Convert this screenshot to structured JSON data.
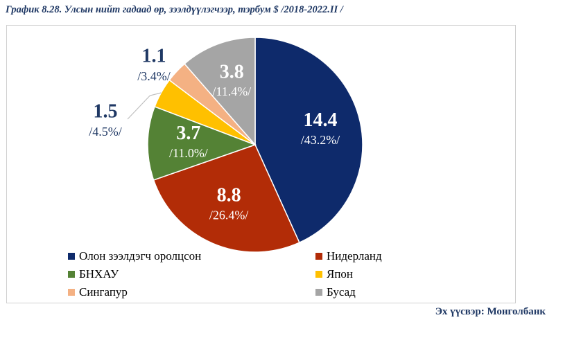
{
  "title": "График 8.28. Улсын нийт гадаад өр, зээлдүүлэгчээр, тэрбум $ /2018-2022.II /",
  "source": "Эх үүсвэр: Монголбанк",
  "chart_data": {
    "type": "pie",
    "title": "График 8.28. Улсын нийт гадаад өр, зээлдүүлэгчээр, тэрбум $ /2018-2022.II /",
    "slices": [
      {
        "label": "Олон зээлдэгч оролцсон",
        "value": 14.4,
        "percent_label": "/43.2%/",
        "color": "#0e2a6b"
      },
      {
        "label": "Нидерланд",
        "value": 8.8,
        "percent_label": "/26.4%/",
        "color": "#b22c07"
      },
      {
        "label": "БНХАУ",
        "value": 3.7,
        "percent_label": "/11.0%/",
        "color": "#548235"
      },
      {
        "label": "Япон",
        "value": 1.5,
        "percent_label": "/4.5%/",
        "color": "#ffc000"
      },
      {
        "label": "Сингапур",
        "value": 1.1,
        "percent_label": "/3.4%/",
        "color": "#f4b183"
      },
      {
        "label": "Бусад",
        "value": 3.8,
        "percent_label": "/11.4%/",
        "color": "#a5a5a5"
      }
    ],
    "start_angle": "12 o'clock",
    "direction": "clockwise",
    "legend_position": "bottom"
  }
}
